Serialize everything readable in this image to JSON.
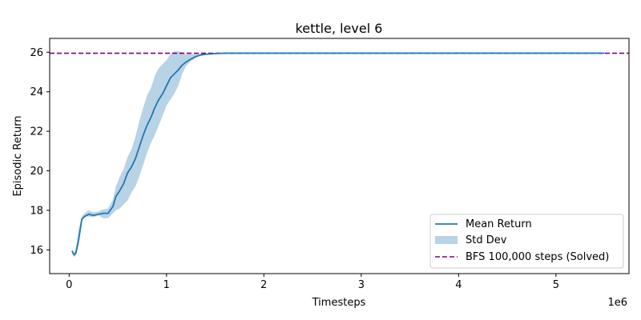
{
  "chart_data": {
    "type": "line",
    "title": "kettle, level 6",
    "xlabel": "Timesteps",
    "ylabel": "Episodic Return",
    "x_offset_label": "1e6",
    "xlim": [
      -0.2,
      5.75
    ],
    "ylim": [
      14.8,
      26.7
    ],
    "xticks": [
      0,
      1,
      2,
      3,
      4,
      5
    ],
    "yticks": [
      16,
      18,
      20,
      22,
      24,
      26
    ],
    "grid": false,
    "legend_position": "lower-right",
    "colors": {
      "mean": "#1f77b4",
      "std": "#a6c8e0",
      "bfs": "#800080"
    },
    "series": [
      {
        "name": "Mean Return",
        "kind": "line",
        "x": [
          0.03,
          0.05,
          0.07,
          0.1,
          0.13,
          0.16,
          0.2,
          0.25,
          0.3,
          0.35,
          0.4,
          0.45,
          0.48,
          0.52,
          0.56,
          0.6,
          0.64,
          0.68,
          0.72,
          0.76,
          0.8,
          0.84,
          0.88,
          0.92,
          0.96,
          1.0,
          1.04,
          1.08,
          1.12,
          1.16,
          1.2,
          1.25,
          1.3,
          1.35,
          1.4,
          1.5,
          1.6,
          2.0,
          3.0,
          4.0,
          5.0,
          5.5
        ],
        "y": [
          15.95,
          15.75,
          15.85,
          16.6,
          17.55,
          17.7,
          17.8,
          17.75,
          17.8,
          17.85,
          17.85,
          18.2,
          18.7,
          19.0,
          19.35,
          19.9,
          20.2,
          20.6,
          21.2,
          21.8,
          22.3,
          22.7,
          23.2,
          23.6,
          23.9,
          24.3,
          24.7,
          24.9,
          25.1,
          25.35,
          25.5,
          25.65,
          25.78,
          25.86,
          25.9,
          25.93,
          25.95,
          25.95,
          25.95,
          25.95,
          25.95,
          25.95
        ]
      },
      {
        "name": "Std Dev",
        "kind": "band",
        "x": [
          0.03,
          0.05,
          0.07,
          0.1,
          0.13,
          0.16,
          0.2,
          0.25,
          0.3,
          0.35,
          0.4,
          0.45,
          0.48,
          0.52,
          0.56,
          0.6,
          0.64,
          0.68,
          0.72,
          0.76,
          0.8,
          0.84,
          0.88,
          0.92,
          0.96,
          1.0,
          1.04,
          1.08,
          1.12,
          1.16,
          1.2,
          1.25,
          1.3,
          1.35,
          1.4,
          1.5,
          1.6,
          2.0,
          3.0,
          4.0,
          5.0,
          5.5
        ],
        "lower": [
          15.85,
          15.65,
          15.7,
          16.3,
          17.5,
          17.65,
          17.7,
          17.65,
          17.75,
          17.6,
          17.6,
          17.85,
          18.0,
          18.1,
          18.3,
          18.5,
          18.9,
          19.2,
          19.7,
          20.3,
          20.9,
          21.4,
          21.8,
          22.3,
          22.8,
          23.3,
          23.6,
          23.9,
          24.3,
          24.9,
          25.3,
          25.55,
          25.72,
          25.82,
          25.88,
          25.92,
          25.95,
          25.95,
          25.95,
          25.95,
          25.95,
          25.95
        ],
        "upper": [
          16.05,
          15.85,
          16.1,
          17.1,
          17.7,
          17.85,
          18.0,
          17.9,
          17.95,
          18.05,
          18.1,
          18.55,
          19.2,
          19.7,
          20.1,
          20.7,
          21.1,
          21.7,
          22.5,
          23.2,
          23.8,
          24.2,
          24.8,
          25.2,
          25.4,
          25.6,
          25.9,
          26.05,
          26.05,
          26.0,
          25.9,
          25.9,
          25.9,
          25.92,
          25.93,
          25.95,
          25.95,
          25.95,
          25.95,
          25.95,
          25.95,
          25.95
        ]
      },
      {
        "name": "BFS 100,000 steps (Solved)",
        "kind": "hline",
        "y": 25.95
      }
    ]
  }
}
